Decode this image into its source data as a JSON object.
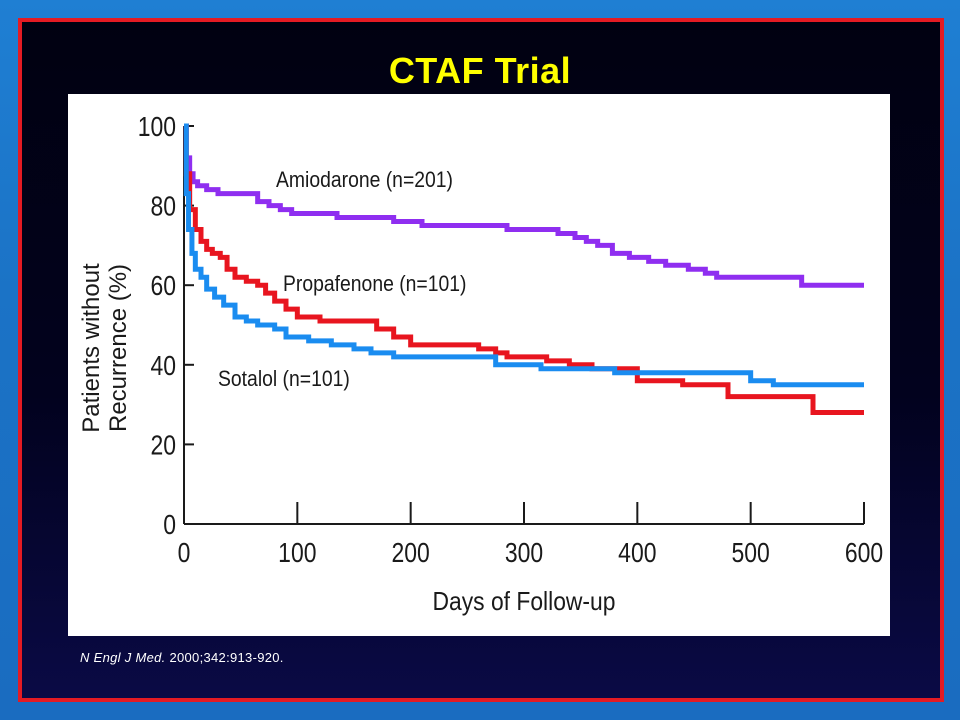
{
  "slide": {
    "title": "CTAF Trial",
    "citation_journal": "N Engl J Med.",
    "citation_ref": " 2000;342:913-920."
  },
  "colors": {
    "background": "#1b73c6",
    "frame": "#e41b23",
    "title": "#ffff00",
    "panel": "#ffffff"
  },
  "chart_data": {
    "type": "line",
    "step": true,
    "xlabel": "Days of Follow-up",
    "ylabel_line1": "Patients without",
    "ylabel_line2": "Recurrence (%)",
    "xlim": [
      0,
      600
    ],
    "ylim": [
      0,
      100
    ],
    "x_ticks": [
      "0",
      "100",
      "200",
      "300",
      "400",
      "500",
      "600"
    ],
    "y_ticks": [
      "0",
      "20",
      "40",
      "60",
      "80",
      "100"
    ],
    "grid": false,
    "series": [
      {
        "name": "Amiodarone (n=201)",
        "color": "#8f2ef0",
        "points": [
          [
            0,
            100
          ],
          [
            2,
            92
          ],
          [
            5,
            88
          ],
          [
            8,
            86
          ],
          [
            12,
            85
          ],
          [
            20,
            84
          ],
          [
            30,
            83
          ],
          [
            55,
            83
          ],
          [
            65,
            81
          ],
          [
            75,
            80
          ],
          [
            85,
            79
          ],
          [
            95,
            78
          ],
          [
            125,
            78
          ],
          [
            135,
            77
          ],
          [
            175,
            77
          ],
          [
            185,
            76
          ],
          [
            200,
            76
          ],
          [
            210,
            75
          ],
          [
            270,
            75
          ],
          [
            285,
            74
          ],
          [
            310,
            74
          ],
          [
            330,
            73
          ],
          [
            345,
            72
          ],
          [
            355,
            71
          ],
          [
            365,
            70
          ],
          [
            378,
            68
          ],
          [
            393,
            67
          ],
          [
            410,
            66
          ],
          [
            425,
            65
          ],
          [
            445,
            64
          ],
          [
            460,
            63
          ],
          [
            470,
            62
          ],
          [
            520,
            62
          ],
          [
            545,
            60
          ],
          [
            600,
            60
          ]
        ]
      },
      {
        "name": "Propafenone (n=101)",
        "color": "#e8151f",
        "points": [
          [
            0,
            100
          ],
          [
            2,
            88
          ],
          [
            5,
            79
          ],
          [
            10,
            74
          ],
          [
            15,
            71
          ],
          [
            20,
            69
          ],
          [
            25,
            68
          ],
          [
            32,
            67
          ],
          [
            38,
            64
          ],
          [
            45,
            62
          ],
          [
            55,
            61
          ],
          [
            65,
            60
          ],
          [
            72,
            58
          ],
          [
            80,
            56
          ],
          [
            90,
            54
          ],
          [
            100,
            52
          ],
          [
            120,
            51
          ],
          [
            160,
            51
          ],
          [
            170,
            49
          ],
          [
            185,
            47
          ],
          [
            200,
            45
          ],
          [
            230,
            45
          ],
          [
            260,
            44
          ],
          [
            275,
            43
          ],
          [
            285,
            42
          ],
          [
            305,
            42
          ],
          [
            320,
            41
          ],
          [
            340,
            40
          ],
          [
            360,
            39
          ],
          [
            380,
            39
          ],
          [
            400,
            36
          ],
          [
            420,
            36
          ],
          [
            440,
            35
          ],
          [
            470,
            35
          ],
          [
            480,
            32
          ],
          [
            550,
            32
          ],
          [
            555,
            28
          ],
          [
            600,
            28
          ]
        ]
      },
      {
        "name": "Sotalol (n=101)",
        "color": "#1a8cf0",
        "points": [
          [
            0,
            100
          ],
          [
            2,
            83
          ],
          [
            4,
            74
          ],
          [
            7,
            68
          ],
          [
            10,
            64
          ],
          [
            15,
            62
          ],
          [
            20,
            59
          ],
          [
            27,
            57
          ],
          [
            35,
            55
          ],
          [
            45,
            52
          ],
          [
            55,
            51
          ],
          [
            65,
            50
          ],
          [
            80,
            49
          ],
          [
            90,
            47
          ],
          [
            110,
            46
          ],
          [
            130,
            45
          ],
          [
            150,
            44
          ],
          [
            165,
            43
          ],
          [
            185,
            42
          ],
          [
            270,
            42
          ],
          [
            275,
            40
          ],
          [
            310,
            40
          ],
          [
            315,
            39
          ],
          [
            360,
            39
          ],
          [
            380,
            38
          ],
          [
            480,
            38
          ],
          [
            500,
            36
          ],
          [
            520,
            35
          ],
          [
            600,
            35
          ]
        ]
      }
    ]
  }
}
